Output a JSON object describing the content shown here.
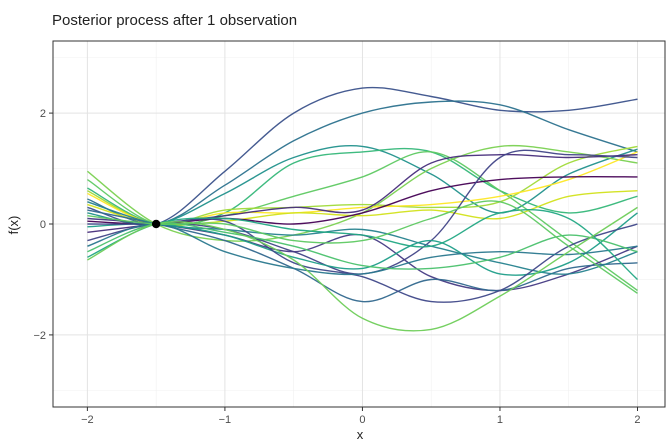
{
  "chart_data": {
    "type": "line",
    "title": "Posterior process after 1 observation",
    "xlabel": "x",
    "ylabel": "f(x)",
    "xlim": [
      -2.25,
      2.2
    ],
    "ylim": [
      -3.3,
      3.3
    ],
    "xticks": [
      -2,
      -1,
      0,
      1,
      2
    ],
    "xtick_labels": [
      "−2",
      "−1",
      "0",
      "1",
      "2"
    ],
    "yticks": [
      -2,
      0,
      2
    ],
    "ytick_labels": [
      "−2",
      "0",
      "2"
    ],
    "grid": true,
    "legend": "none",
    "observation": {
      "x": -1.5,
      "y": 0
    },
    "x_grid": [
      -2,
      -1.5,
      -1,
      -0.5,
      0,
      0.5,
      1,
      1.5,
      2
    ],
    "series": [
      {
        "color": "#3b528b",
        "values": [
          0.3,
          0.0,
          0.95,
          2.0,
          2.45,
          2.3,
          2.05,
          2.05,
          2.25
        ]
      },
      {
        "color": "#2c728e",
        "values": [
          0.45,
          0.0,
          0.7,
          1.5,
          2.0,
          2.2,
          2.15,
          1.7,
          1.3
        ]
      },
      {
        "color": "#21918c",
        "values": [
          0.2,
          0.0,
          0.55,
          1.2,
          1.4,
          0.9,
          0.2,
          0.9,
          1.35
        ]
      },
      {
        "color": "#35b779",
        "values": [
          0.65,
          0.0,
          0.2,
          1.1,
          1.3,
          1.3,
          0.6,
          0.2,
          0.5
        ]
      },
      {
        "color": "#5ec962",
        "values": [
          0.8,
          0.0,
          0.15,
          0.5,
          0.85,
          1.3,
          0.6,
          -0.3,
          -1.2
        ]
      },
      {
        "color": "#7ad151",
        "values": [
          0.95,
          0.0,
          -0.3,
          -0.2,
          0.2,
          1.0,
          1.4,
          1.3,
          1.1
        ]
      },
      {
        "color": "#a0da39",
        "values": [
          0.6,
          0.0,
          0.25,
          0.3,
          0.35,
          0.3,
          0.4,
          1.1,
          1.4
        ]
      },
      {
        "color": "#fde725",
        "values": [
          0.55,
          0.0,
          0.2,
          0.2,
          0.3,
          0.35,
          0.5,
          0.8,
          1.3
        ]
      },
      {
        "color": "#d2e21b",
        "values": [
          0.35,
          0.0,
          0.05,
          0.2,
          0.15,
          0.25,
          0.1,
          0.5,
          0.6
        ]
      },
      {
        "color": "#440154",
        "values": [
          0.05,
          0.0,
          0.1,
          0.0,
          0.2,
          0.6,
          0.8,
          0.85,
          0.85
        ]
      },
      {
        "color": "#472d7b",
        "values": [
          -0.15,
          0.0,
          0.15,
          0.3,
          0.25,
          1.1,
          1.25,
          1.2,
          1.25
        ]
      },
      {
        "color": "#414487",
        "values": [
          -0.3,
          0.0,
          -0.1,
          -0.5,
          -0.9,
          -0.3,
          1.2,
          1.25,
          1.2
        ]
      },
      {
        "color": "#443a83",
        "values": [
          0.1,
          0.0,
          -0.2,
          -0.5,
          -0.2,
          -0.95,
          -1.2,
          -0.9,
          -0.4
        ]
      },
      {
        "color": "#31688e",
        "values": [
          0.25,
          0.0,
          -0.3,
          -0.8,
          -1.4,
          -1.0,
          -1.2,
          -0.8,
          -0.7
        ]
      },
      {
        "color": "#26828e",
        "values": [
          0.4,
          0.0,
          -0.1,
          -0.2,
          -0.1,
          -0.4,
          -0.7,
          -0.9,
          -0.5
        ]
      },
      {
        "color": "#1f9e89",
        "values": [
          -0.05,
          0.0,
          -0.2,
          -0.6,
          -0.8,
          -0.3,
          -0.9,
          -0.7,
          0.2
        ]
      },
      {
        "color": "#3f4889",
        "values": [
          0.0,
          0.0,
          0.05,
          -0.7,
          -0.95,
          -1.4,
          -1.2,
          -0.4,
          0.0
        ]
      },
      {
        "color": "#2a788e",
        "values": [
          -0.4,
          0.0,
          -0.5,
          -0.8,
          -0.9,
          -0.6,
          -0.5,
          -0.55,
          -0.4
        ]
      },
      {
        "color": "#4ac16d",
        "values": [
          -0.5,
          0.0,
          -0.15,
          -0.4,
          -0.75,
          -0.8,
          -0.6,
          -0.2,
          -0.5
        ]
      },
      {
        "color": "#22a884",
        "values": [
          -0.6,
          0.0,
          0.1,
          -0.1,
          -0.2,
          -0.4,
          0.2,
          0.1,
          -1.0
        ]
      },
      {
        "color": "#6ece58",
        "values": [
          -0.65,
          0.0,
          -0.1,
          -0.65,
          -1.7,
          -1.9,
          -1.3,
          -0.5,
          0.3
        ]
      },
      {
        "color": "#5ec962",
        "values": [
          0.15,
          0.0,
          0.0,
          -0.3,
          -0.3,
          0.1,
          0.4,
          -0.4,
          -1.25
        ]
      }
    ]
  }
}
